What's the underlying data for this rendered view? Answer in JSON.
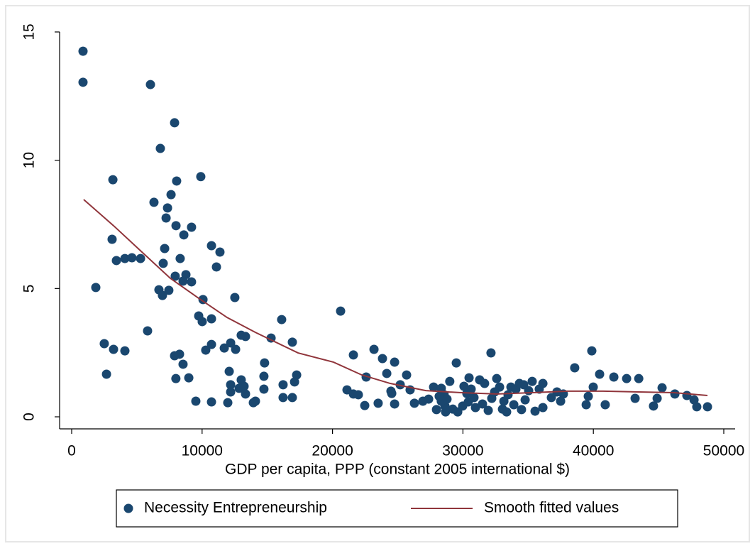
{
  "chart_data": {
    "type": "scatter",
    "x_label": "GDP per capita, PPP (constant 2005 international $)",
    "xlim": [
      -925,
      50870
    ],
    "ylim": [
      -0.47,
      15
    ],
    "xticks": [
      0,
      10000,
      20000,
      30000,
      40000,
      50000
    ],
    "yticks": [
      0,
      5,
      10,
      15
    ],
    "series": [
      {
        "name": "Necessity Entrepreneurship",
        "type": "scatter",
        "color": "#1a476f",
        "x": [
          870,
          870,
          6040,
          7890,
          6800,
          3160,
          8050,
          9900,
          7620,
          6310,
          7350,
          7240,
          8000,
          9190,
          8600,
          3100,
          10720,
          11370,
          7130,
          3430,
          4080,
          4620,
          5280,
          7020,
          8320,
          11100,
          7940,
          8760,
          8540,
          9190,
          1850,
          6690,
          7450,
          6960,
          12510,
          10070,
          20620,
          9740,
          10010,
          10720,
          16100,
          5820,
          13000,
          13330,
          15290,
          16920,
          2500,
          10720,
          12190,
          11700,
          3210,
          4080,
          10280,
          12570,
          23180,
          39880,
          7890,
          8270,
          21600,
          32150,
          23830,
          24760,
          14790,
          29490,
          8540,
          38570,
          24160,
          2670,
          17250,
          25680,
          40480,
          8980,
          7990,
          12080,
          22580,
          14740,
          41570,
          42550,
          43480,
          13000,
          17090,
          28990,
          25190,
          12190,
          16210,
          12840,
          14740,
          13220,
          21110,
          24480,
          25950,
          27750,
          28340,
          30080,
          39990,
          45270,
          13330,
          12190,
          21600,
          21980,
          24540,
          39610,
          43200,
          46250,
          47170,
          47720,
          44890,
          16210,
          16920,
          14090,
          13930,
          11970,
          10720,
          9520,
          22470,
          23500,
          24760,
          26280,
          26930,
          27370,
          39450,
          40910,
          44610,
          47930,
          48750,
          36130,
          35530,
          28670,
          27970,
          28620,
          28340,
          28560,
          28180,
          28780,
          29220,
          29600,
          29980,
          30410,
          30850,
          30630,
          30470,
          31280,
          31660,
          30300,
          30960,
          31500,
          31940,
          32210,
          32430,
          32590,
          32810,
          33140,
          33030,
          33460,
          33680,
          34060,
          34330,
          33900,
          34490,
          34770,
          35040,
          35310,
          35850,
          34660,
          33350,
          36130,
          37210,
          37700,
          37490,
          36780
        ],
        "values": [
          14.25,
          13.04,
          12.95,
          11.46,
          10.46,
          9.24,
          9.19,
          9.36,
          8.66,
          8.36,
          8.14,
          7.75,
          7.45,
          7.39,
          7.09,
          6.92,
          6.67,
          6.42,
          6.56,
          6.09,
          6.17,
          6.2,
          6.17,
          5.98,
          6.17,
          5.84,
          5.48,
          5.54,
          5.29,
          5.26,
          5.04,
          4.95,
          4.93,
          4.73,
          4.65,
          4.57,
          4.12,
          3.93,
          3.71,
          3.82,
          3.79,
          3.35,
          3.18,
          3.13,
          3.07,
          2.91,
          2.85,
          2.82,
          2.88,
          2.68,
          2.63,
          2.57,
          2.6,
          2.63,
          2.63,
          2.57,
          2.38,
          2.44,
          2.41,
          2.49,
          2.27,
          2.13,
          2.1,
          2.1,
          2.05,
          1.91,
          1.69,
          1.66,
          1.63,
          1.63,
          1.66,
          1.52,
          1.49,
          1.77,
          1.55,
          1.58,
          1.55,
          1.49,
          1.49,
          1.44,
          1.36,
          1.38,
          1.25,
          1.25,
          1.25,
          1.11,
          1.08,
          1.19,
          1.05,
          1.0,
          1.05,
          1.16,
          1.11,
          1.19,
          1.16,
          1.13,
          0.89,
          0.97,
          0.89,
          0.86,
          0.91,
          0.8,
          0.72,
          0.89,
          0.83,
          0.66,
          0.72,
          0.75,
          0.75,
          0.61,
          0.55,
          0.55,
          0.58,
          0.61,
          0.44,
          0.53,
          0.5,
          0.53,
          0.61,
          0.69,
          0.47,
          0.47,
          0.42,
          0.39,
          0.39,
          0.36,
          0.22,
          0.19,
          0.28,
          0.42,
          0.61,
          0.86,
          0.8,
          0.69,
          0.3,
          0.19,
          0.42,
          0.58,
          0.75,
          1.08,
          1.52,
          1.44,
          1.3,
          0.91,
          0.36,
          0.5,
          0.25,
          0.72,
          0.97,
          1.49,
          1.16,
          0.61,
          0.3,
          0.86,
          1.16,
          1.08,
          1.3,
          0.47,
          0.28,
          0.66,
          1.02,
          1.38,
          1.08,
          1.25,
          0.19,
          1.3,
          0.97,
          0.89,
          0.61,
          0.75
        ]
      },
      {
        "name": "Smooth fitted values",
        "type": "line",
        "color": "#90353b",
        "x": [
          920,
          3210,
          5390,
          7560,
          9740,
          11920,
          14090,
          17360,
          20080,
          22250,
          24430,
          27150,
          29870,
          32590,
          35310,
          38030,
          40750,
          43480,
          46190,
          48750
        ],
        "values": [
          8.47,
          7.45,
          6.42,
          5.4,
          4.62,
          3.87,
          3.29,
          2.49,
          2.13,
          1.63,
          1.3,
          1.02,
          0.94,
          0.89,
          0.94,
          1.0,
          1.0,
          0.97,
          0.94,
          0.83
        ]
      }
    ]
  }
}
